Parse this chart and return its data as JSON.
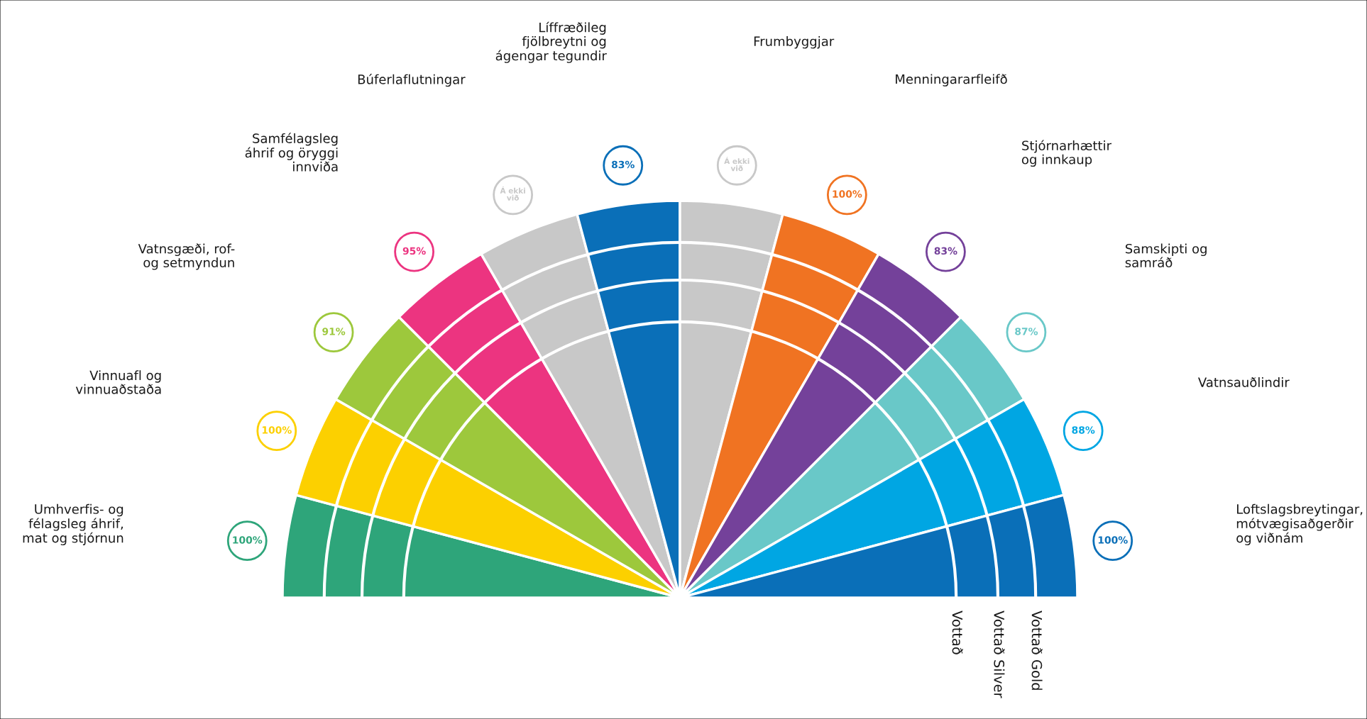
{
  "chart_data": {
    "type": "other",
    "categories": [
      "Umhverfis- og\nfélagsleg áhrif,\nmat og stjórnun",
      "Vinnuafl og\nvinnuaðstaða",
      "Vatnsgæði, rof-\nog setmyndun",
      "Samfélagsleg\náhrif og öryggi\ninnviða",
      "Búferlaflutningar",
      "Líffræðileg\nfjölbreytni og\nágengar tegundir",
      "Frumbyggjar",
      "Menningararfleifð",
      "Stjórnarhættir\nog innkaup",
      "Samskipti og\nsamráð",
      "Vatnsauðlindir",
      "Loftslagsbreytingar,\nmótvægisaðgerðir\nog viðnám"
    ],
    "values": [
      100,
      100,
      91,
      95,
      null,
      83,
      null,
      100,
      83,
      87,
      88,
      100
    ],
    "value_labels": [
      "100%",
      "100%",
      "91%",
      "95%",
      "Á ekki\nvið",
      "83%",
      "Á ekki\nvið",
      "100%",
      "83%",
      "87%",
      "88%",
      "100%"
    ],
    "colors": [
      "#2ea57a",
      "#fcd000",
      "#9dc83c",
      "#ec3480",
      "#c8c8c8",
      "#0a6fb8",
      "#c8c8c8",
      "#f07322",
      "#74419a",
      "#69c8c8",
      "#00a6e3",
      "#0a6fb8"
    ],
    "annotations": [
      "Vottað",
      "Vottað Silver",
      "Vottað Gold"
    ]
  }
}
